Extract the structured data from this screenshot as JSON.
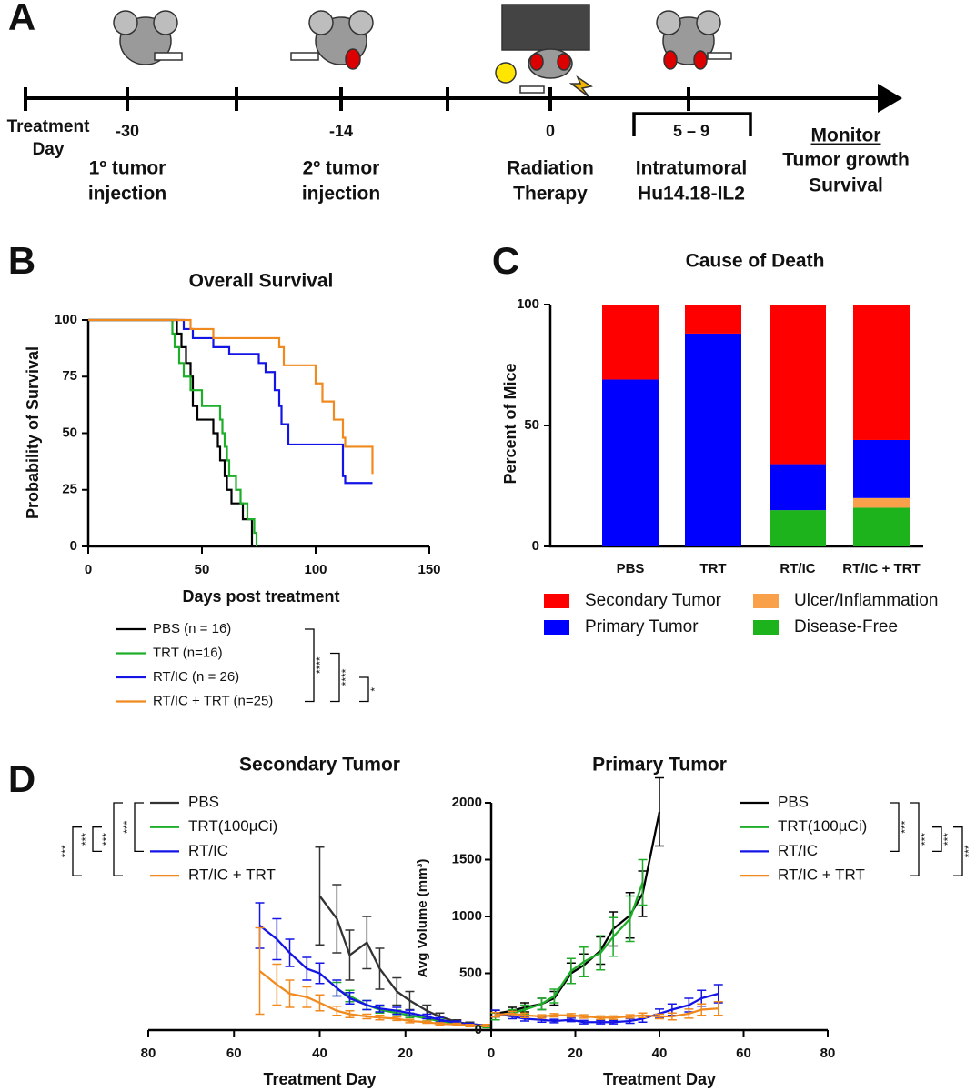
{
  "timeline": {
    "letter": "A",
    "start_label": [
      "Treatment",
      "Day"
    ],
    "events": [
      {
        "day": "-30",
        "label": [
          "1º tumor",
          "injection"
        ]
      },
      {
        "day": "-14",
        "label": [
          "2º tumor",
          "injection"
        ]
      },
      {
        "day": "0",
        "label": [
          "Radiation",
          "Therapy"
        ]
      },
      {
        "day": "5 – 9",
        "label": [
          "Intratumoral",
          "Hu14.18-IL2"
        ]
      }
    ],
    "monitor": {
      "heading": "Monitor",
      "lines": [
        "Tumor growth",
        "Survival"
      ]
    }
  },
  "chart_data": [
    {
      "type": "step",
      "panel": "B",
      "title": "Overall  Survival",
      "xlabel": "Days post treatment",
      "ylabel": "Probability of Survival",
      "xlim": [
        0,
        150
      ],
      "xticks": [
        0,
        50,
        100,
        150
      ],
      "ylim": [
        0,
        100
      ],
      "yticks": [
        0,
        25,
        50,
        75,
        100
      ],
      "series": [
        {
          "name": "PBS (n = 16)",
          "color": "#000000",
          "x": [
            0,
            39,
            41,
            43,
            45,
            46,
            48,
            55,
            57,
            58,
            60,
            61,
            63,
            68,
            72
          ],
          "values": [
            100,
            94,
            88,
            81,
            75,
            62,
            56,
            50,
            44,
            38,
            31,
            25,
            19,
            12,
            0
          ]
        },
        {
          "name": "TRT (n=16)",
          "color": "#1fae2a",
          "x": [
            0,
            37,
            38,
            40,
            42,
            45,
            50,
            58,
            59,
            60,
            61,
            62,
            65,
            67,
            70,
            73,
            74
          ],
          "values": [
            100,
            94,
            88,
            81,
            75,
            69,
            62,
            56,
            50,
            44,
            38,
            31,
            25,
            19,
            12,
            6,
            0
          ]
        },
        {
          "name": "RT/IC (n = 26)",
          "color": "#1414e6",
          "x": [
            0,
            42,
            46,
            55,
            62,
            75,
            78,
            82,
            84,
            85,
            88,
            112,
            113,
            125
          ],
          "values": [
            100,
            96,
            92,
            88,
            85,
            81,
            77,
            69,
            62,
            54,
            45,
            31,
            28,
            28
          ]
        },
        {
          "name": "RT/IC + TRT (n=25)",
          "color": "#f08a1e",
          "x": [
            0,
            45,
            55,
            84,
            86,
            100,
            103,
            108,
            112,
            113,
            125
          ],
          "values": [
            100,
            96,
            92,
            88,
            80,
            72,
            64,
            56,
            48,
            44,
            32
          ]
        }
      ],
      "comparisons": [
        "****",
        "****",
        "*"
      ]
    },
    {
      "type": "stacked_bar",
      "panel": "C",
      "title": "Cause of Death",
      "ylabel": "Percent of Mice",
      "categories": [
        "PBS",
        "TRT",
        "RT/IC",
        "RT/IC + TRT"
      ],
      "ylim": [
        0,
        100
      ],
      "yticks": [
        0,
        50,
        100
      ],
      "series": [
        {
          "name": "Disease-Free",
          "color": "#1db31d",
          "values": [
            0,
            0,
            15,
            16
          ]
        },
        {
          "name": "Ulcer/Inflammation",
          "color": "#f9a04a",
          "values": [
            0,
            0,
            0,
            4
          ]
        },
        {
          "name": "Primary Tumor",
          "color": "#0000ff",
          "values": [
            69,
            88,
            19,
            24
          ]
        },
        {
          "name": "Secondary Tumor",
          "color": "#ff0000",
          "values": [
            31,
            12,
            66,
            56
          ]
        }
      ]
    },
    {
      "type": "line",
      "panel": "D",
      "title": "Secondary Tumor",
      "xlabel": "Treatment Day",
      "xlim": [
        80,
        0
      ],
      "xticks": [
        80,
        60,
        40,
        20
      ],
      "ylim": [
        0,
        2000
      ],
      "series": [
        {
          "name": "PBS",
          "color": "#333333",
          "x": [
            40,
            36,
            33,
            29,
            26,
            22,
            19,
            15,
            12,
            8,
            5,
            1
          ],
          "values": [
            1180,
            980,
            660,
            770,
            540,
            340,
            260,
            170,
            120,
            70,
            55,
            40
          ],
          "errors": [
            430,
            300,
            220,
            230,
            180,
            120,
            80,
            50,
            30,
            20,
            15,
            10
          ]
        },
        {
          "name": "TRT(100µCi)",
          "color": "#1fae2a",
          "x": [
            36,
            33,
            29,
            26,
            22,
            19,
            15,
            12,
            8,
            5,
            1
          ],
          "values": [
            360,
            300,
            220,
            180,
            150,
            130,
            100,
            80,
            55,
            40,
            30
          ],
          "errors": [
            60,
            50,
            40,
            30,
            25,
            20,
            20,
            15,
            10,
            10,
            10
          ]
        },
        {
          "name": "RT/IC",
          "color": "#1414e6",
          "x": [
            54,
            50,
            47,
            43,
            40,
            36,
            33,
            29,
            26,
            22,
            19,
            15,
            12,
            8,
            5,
            1
          ],
          "values": [
            920,
            800,
            680,
            540,
            500,
            370,
            280,
            220,
            190,
            170,
            150,
            120,
            90,
            65,
            50,
            40
          ],
          "errors": [
            200,
            180,
            120,
            100,
            90,
            70,
            50,
            40,
            30,
            30,
            25,
            20,
            20,
            15,
            10,
            10
          ]
        },
        {
          "name": "RT/IC + TRT",
          "color": "#f08a1e",
          "x": [
            54,
            50,
            47,
            43,
            40,
            36,
            33,
            29,
            26,
            22,
            19,
            15,
            12,
            8,
            5,
            1
          ],
          "values": [
            520,
            400,
            320,
            290,
            240,
            170,
            140,
            120,
            110,
            100,
            80,
            70,
            55,
            50,
            40,
            40
          ],
          "errors": [
            380,
            180,
            120,
            90,
            70,
            40,
            30,
            20,
            20,
            15,
            15,
            10,
            10,
            10,
            10,
            10
          ]
        }
      ],
      "comparisons": [
        "***",
        "***",
        "***",
        "***"
      ]
    },
    {
      "type": "line",
      "title": "Primary Tumor",
      "xlabel": "Treatment Day",
      "ylabel": "Avg Volume (mm³)",
      "xlim": [
        0,
        80
      ],
      "xticks": [
        0,
        20,
        40,
        60,
        80
      ],
      "ylim": [
        0,
        2000
      ],
      "yticks": [
        0,
        500,
        1000,
        1500,
        2000
      ],
      "series": [
        {
          "name": "PBS",
          "color": "#000000",
          "x": [
            1,
            5,
            8,
            12,
            15,
            19,
            22,
            26,
            29,
            33,
            36,
            40
          ],
          "values": [
            145,
            170,
            200,
            230,
            280,
            500,
            570,
            700,
            890,
            1010,
            1200,
            1920
          ],
          "errors": [
            30,
            30,
            40,
            50,
            60,
            90,
            100,
            120,
            150,
            200,
            200,
            300
          ]
        },
        {
          "name": "TRT(100µCi)",
          "color": "#1fae2a",
          "x": [
            1,
            5,
            8,
            12,
            15,
            19,
            22,
            26,
            29,
            33,
            36
          ],
          "values": [
            120,
            150,
            180,
            230,
            300,
            520,
            600,
            680,
            820,
            980,
            1300
          ],
          "errors": [
            30,
            30,
            40,
            50,
            60,
            110,
            130,
            150,
            170,
            200,
            200
          ]
        },
        {
          "name": "RT/IC",
          "color": "#1414e6",
          "x": [
            1,
            5,
            8,
            12,
            15,
            19,
            22,
            26,
            29,
            33,
            36,
            40,
            43,
            47,
            50,
            54
          ],
          "values": [
            145,
            120,
            100,
            90,
            80,
            90,
            70,
            70,
            70,
            80,
            100,
            145,
            180,
            220,
            280,
            320
          ],
          "errors": [
            30,
            20,
            20,
            20,
            15,
            15,
            15,
            15,
            15,
            20,
            30,
            40,
            50,
            60,
            70,
            80
          ]
        },
        {
          "name": "RT/IC + TRT",
          "color": "#f08a1e",
          "x": [
            1,
            5,
            8,
            12,
            15,
            19,
            22,
            26,
            29,
            33,
            36,
            40,
            43,
            47,
            50,
            54
          ],
          "values": [
            135,
            145,
            130,
            120,
            130,
            130,
            120,
            110,
            110,
            120,
            130,
            120,
            120,
            145,
            180,
            190
          ],
          "errors": [
            20,
            20,
            20,
            15,
            15,
            15,
            15,
            15,
            15,
            15,
            20,
            20,
            30,
            40,
            50,
            60
          ]
        }
      ],
      "comparisons": [
        "***",
        "***",
        "***",
        "***"
      ]
    }
  ]
}
